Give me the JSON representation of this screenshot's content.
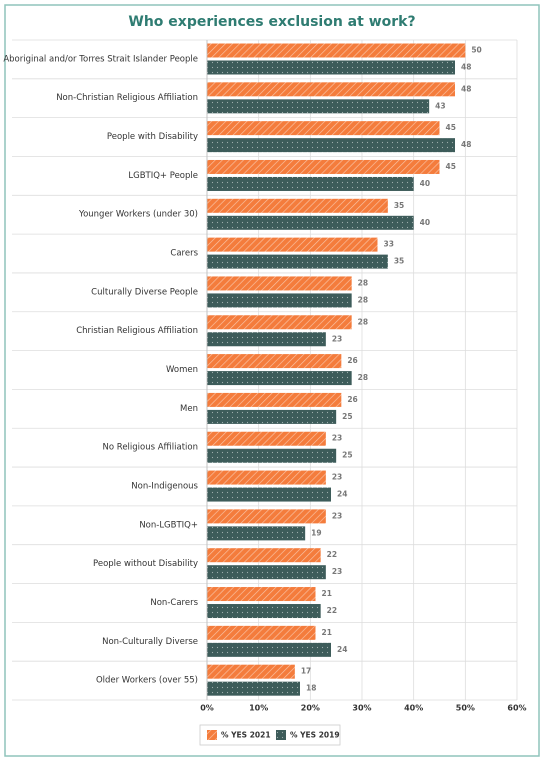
{
  "chart_data": {
    "type": "bar",
    "orientation": "horizontal",
    "title": "Who experiences exclusion at work?",
    "categories": [
      "Aboriginal and/or Torres Strait Islander People",
      "Non-Christian Religious Affiliation",
      "People with Disability",
      "LGBTIQ+ People",
      "Younger Workers (under 30)",
      "Carers",
      "Culturally Diverse People",
      "Christian Religious Affiliation",
      "Women",
      "Men",
      "No Religious Affiliation",
      "Non-Indigenous",
      "Non-LGBTIQ+",
      "People without Disability",
      "Non-Carers",
      "Non-Culturally Diverse",
      "Older Workers (over 55)"
    ],
    "series": [
      {
        "name": "% YES 2021",
        "color": "#f47c3c",
        "values": [
          50,
          48,
          45,
          45,
          35,
          33,
          28,
          28,
          26,
          26,
          23,
          23,
          23,
          22,
          21,
          21,
          17
        ]
      },
      {
        "name": "% YES 2019",
        "color": "#3d5c5a",
        "values": [
          48,
          43,
          48,
          40,
          40,
          35,
          28,
          23,
          28,
          25,
          25,
          24,
          19,
          23,
          22,
          24,
          18
        ]
      }
    ],
    "xlim": [
      0,
      60
    ],
    "xticks": [
      {
        "value": 0,
        "label": "0%"
      },
      {
        "value": 10,
        "label": "10%"
      },
      {
        "value": 20,
        "label": "20%"
      },
      {
        "value": 30,
        "label": "30%"
      },
      {
        "value": 40,
        "label": "40%"
      },
      {
        "value": 50,
        "label": "50%"
      },
      {
        "value": 60,
        "label": "60%"
      }
    ],
    "grid": true,
    "legend": "bottom"
  }
}
